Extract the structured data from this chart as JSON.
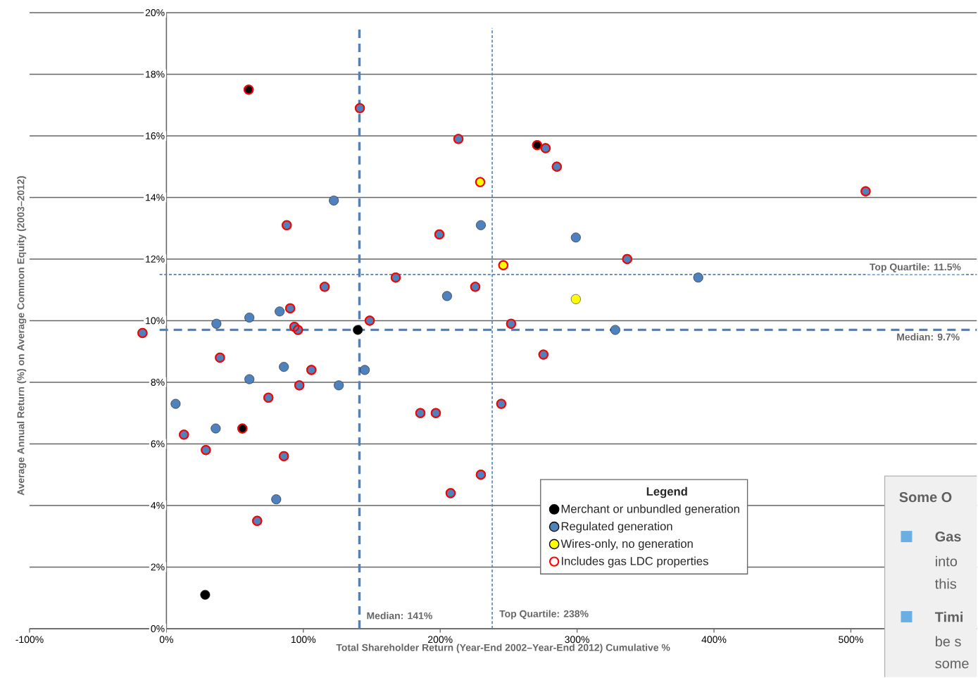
{
  "chart_data": {
    "type": "scatter",
    "xlabel": "Total Shareholder Return (Year-End 2002–Year-End 2012) Cumulative %",
    "ylabel": "Average Annual Return (%) on Average Common Equity (2003–2012)",
    "legend_title": "Legend",
    "series": [
      {
        "name": "Merchant or unbundled generation",
        "color": "#000000",
        "x": [
          60.1,
          270.8,
          139.8,
          55.5,
          28.3
        ],
        "values": [
          17.5,
          15.7,
          9.7,
          6.5,
          1.1
        ]
      },
      {
        "name": "Regulated generation",
        "color": "#4f81bd",
        "x": [
          141.3,
          213.3,
          277,
          285.2,
          510.8,
          122.3,
          87.9,
          229.7,
          199.4,
          299.1,
          336.6,
          388.5,
          167.5,
          115.6,
          225.6,
          205,
          90.4,
          82.7,
          60.6,
          148.5,
          251.8,
          36.5,
          93.5,
          96.1,
          327.9,
          -17.5,
          275.4,
          39.1,
          85.8,
          144.9,
          105.9,
          60.6,
          125.9,
          97.1,
          74.5,
          244.6,
          6.7,
          185.5,
          196.8,
          36.0,
          12.8,
          28.8,
          85.8,
          229.7,
          207.6,
          80.2,
          66.3
        ],
        "values": [
          16.9,
          15.9,
          15.6,
          15.0,
          14.2,
          13.9,
          13.1,
          13.1,
          12.8,
          12.7,
          12.0,
          11.4,
          11.4,
          11.1,
          11.1,
          10.8,
          10.4,
          10.3,
          10.1,
          10.0,
          9.9,
          9.9,
          9.8,
          9.7,
          9.7,
          9.6,
          8.9,
          8.8,
          8.5,
          8.4,
          8.4,
          8.1,
          7.9,
          7.9,
          7.5,
          7.3,
          7.3,
          7.0,
          7.0,
          6.5,
          6.3,
          5.8,
          5.6,
          5.0,
          4.4,
          4.2,
          3.5
        ]
      },
      {
        "name": "Wires-only, no generation",
        "color": "#ffff00",
        "x": [
          229.2,
          246.1,
          299.1
        ],
        "values": [
          14.5,
          11.8,
          10.7
        ]
      },
      {
        "name": "Includes gas LDC properties",
        "color": "#ff0000",
        "x": [
          60.1,
          141.3,
          213.3,
          270.8,
          277,
          285.2,
          229.2,
          510.8,
          87.9,
          199.4,
          336.6,
          246.1,
          167.5,
          115.6,
          225.6,
          90.4,
          148.5,
          251.8,
          93.5,
          96.1,
          -17.5,
          275.4,
          39.1,
          105.9,
          97.1,
          74.5,
          244.6,
          185.5,
          196.8,
          55.5,
          12.8,
          28.8,
          85.8,
          229.7,
          207.6,
          66.3
        ],
        "values": [
          17.5,
          16.9,
          15.9,
          15.7,
          15.6,
          15.0,
          14.5,
          14.2,
          13.1,
          12.8,
          12.0,
          11.8,
          11.4,
          11.1,
          11.1,
          10.4,
          10.0,
          9.9,
          9.8,
          9.7,
          9.6,
          8.9,
          8.8,
          8.4,
          7.9,
          7.5,
          7.3,
          7.0,
          7.0,
          6.5,
          6.3,
          5.8,
          5.6,
          5.0,
          4.4,
          3.5
        ]
      }
    ],
    "xlim": [
      -100,
      592
    ],
    "ylim": [
      0,
      20
    ],
    "xticks": [
      {
        "value": -100,
        "label": "-100%"
      },
      {
        "value": 0,
        "label": "0%"
      },
      {
        "value": 100,
        "label": "100%"
      },
      {
        "value": 200,
        "label": "200%"
      },
      {
        "value": 300,
        "label": "300%"
      },
      {
        "value": 400,
        "label": "400%"
      },
      {
        "value": 500,
        "label": "500%"
      }
    ],
    "yticks": [
      {
        "value": 0,
        "label": "0%"
      },
      {
        "value": 2,
        "label": "2%"
      },
      {
        "value": 4,
        "label": "4%"
      },
      {
        "value": 6,
        "label": "6%"
      },
      {
        "value": 8,
        "label": "8%"
      },
      {
        "value": 10,
        "label": "10%"
      },
      {
        "value": 12,
        "label": "12%"
      },
      {
        "value": 14,
        "label": "14%"
      },
      {
        "value": 16,
        "label": "16%"
      },
      {
        "value": 18,
        "label": "18%"
      },
      {
        "value": 20,
        "label": "20%"
      }
    ],
    "ref_lines": [
      {
        "axis": "x",
        "value": 141,
        "label": "Median: 141%",
        "color": "#4f81bd",
        "line_style": "dashed"
      },
      {
        "axis": "x",
        "value": 238,
        "label": "Top Quartile: 238%",
        "color": "#4f81bd",
        "line_style": "dotted"
      },
      {
        "axis": "y",
        "value": 9.7,
        "label": "Median: 9.7%",
        "color": "#4f81bd",
        "line_style": "dashed"
      },
      {
        "axis": "y",
        "value": 11.5,
        "label": "Top Quartile: 11.5%",
        "color": "#4f81bd",
        "line_style": "dotted"
      }
    ],
    "annotations": [
      "Some O",
      "Gas",
      "into",
      "this",
      "Timi",
      "be s",
      "some"
    ],
    "grid": "y",
    "legend": "bottom right",
    "marker": "circle"
  }
}
